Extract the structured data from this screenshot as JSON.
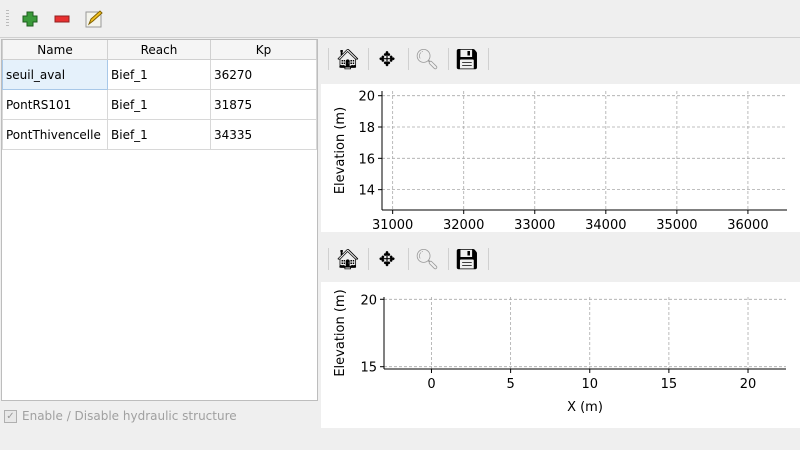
{
  "toolbar": {
    "add_icon": "plus-icon",
    "remove_icon": "minus-icon",
    "edit_icon": "edit-icon"
  },
  "table": {
    "headers": [
      "Name",
      "Reach",
      "Kp"
    ],
    "rows": [
      [
        "seuil_aval",
        "Bief_1",
        "36270"
      ],
      [
        "PontRS101",
        "Bief_1",
        "31875"
      ],
      [
        "PontThivencelle",
        "Bief_1",
        "34335"
      ]
    ]
  },
  "checkbox": {
    "label": "Enable / Disable hydraulic structure",
    "checked": true,
    "enabled": false
  },
  "plot_toolbar_icons": [
    "home-icon",
    "pan-icon",
    "zoom-icon",
    "save-icon"
  ],
  "chart_data": [
    {
      "type": "line",
      "title": "",
      "xlabel": "",
      "ylabel": "Elevation (m)",
      "xlim": [
        30850,
        36550
      ],
      "ylim": [
        12.7,
        20.3
      ],
      "xticks": [
        31000,
        32000,
        33000,
        34000,
        35000,
        36000
      ],
      "yticks": [
        14,
        16,
        18,
        20
      ],
      "grid": true,
      "series": []
    },
    {
      "type": "line",
      "title": "",
      "xlabel": "X (m)",
      "ylabel": "Elevation (m)",
      "xlim": [
        -3,
        22.4
      ],
      "ylim": [
        14.83,
        20.17
      ],
      "xticks": [
        0,
        5,
        10,
        15,
        20
      ],
      "yticks": [
        15,
        20
      ],
      "grid": true,
      "series": []
    }
  ]
}
